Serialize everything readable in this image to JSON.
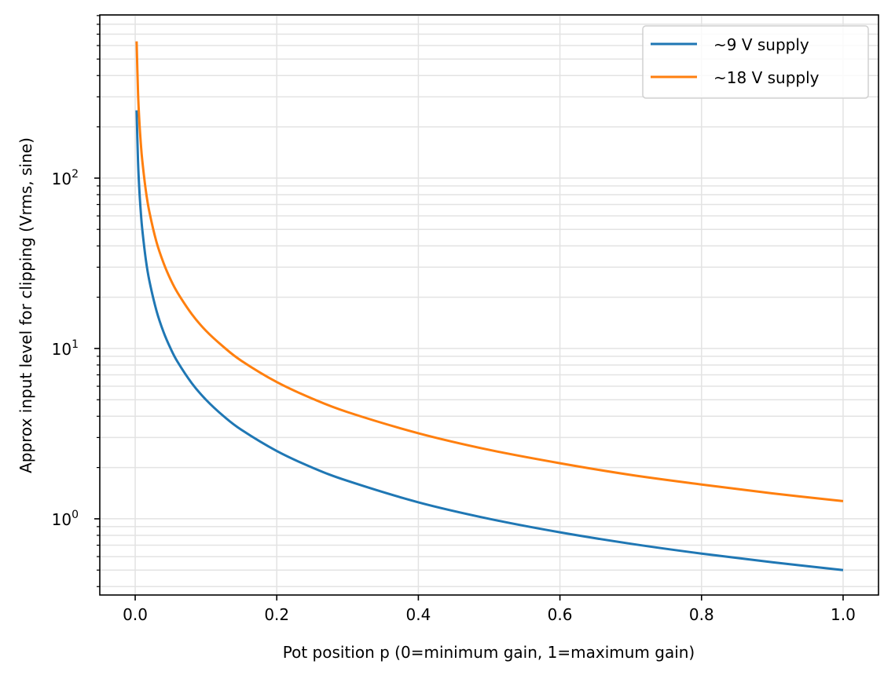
{
  "chart_data": {
    "type": "line",
    "title": "",
    "xlabel": "Pot position p (0=minimum gain, 1=maximum gain)",
    "ylabel": "Approx input level for clipping (Vrms, sine)",
    "xlim": [
      -0.05,
      1.05
    ],
    "ylim": [
      0.357,
      908
    ],
    "yscale": "log",
    "grid": true,
    "legend": "top-right",
    "x_ticks": [
      "0.0",
      "0.2",
      "0.4",
      "0.6",
      "0.8",
      "1.0"
    ],
    "x_tick_values": [
      0,
      0.2,
      0.4,
      0.6,
      0.8,
      1.0
    ],
    "y_ticks": [
      {
        "base": "10",
        "exp": "0",
        "value": 1
      },
      {
        "base": "10",
        "exp": "1",
        "value": 10
      },
      {
        "base": "10",
        "exp": "2",
        "value": 100
      }
    ],
    "x": [
      0.002,
      0.004,
      0.006,
      0.008,
      0.01,
      0.015,
      0.02,
      0.03,
      0.04,
      0.05,
      0.06,
      0.08,
      0.1,
      0.125,
      0.15,
      0.2,
      0.25,
      0.3,
      0.4,
      0.5,
      0.6,
      0.7,
      0.8,
      0.9,
      1.0
    ],
    "series": [
      {
        "name": "~9 V supply",
        "color": "#1f77b4",
        "values": [
          250,
          125,
          83.3,
          62.5,
          50,
          33.3,
          25,
          16.7,
          12.5,
          10,
          8.33,
          6.25,
          5,
          4,
          3.33,
          2.5,
          2,
          1.67,
          1.25,
          1,
          0.833,
          0.714,
          0.625,
          0.556,
          0.5
        ]
      },
      {
        "name": "~18 V supply",
        "color": "#ff7f0e",
        "values": [
          635,
          317.5,
          211.7,
          158.8,
          127,
          84.7,
          63.5,
          42.3,
          31.8,
          25.4,
          21.2,
          15.9,
          12.7,
          10.2,
          8.47,
          6.35,
          5.08,
          4.23,
          3.18,
          2.54,
          2.12,
          1.81,
          1.59,
          1.41,
          1.27
        ]
      }
    ]
  }
}
